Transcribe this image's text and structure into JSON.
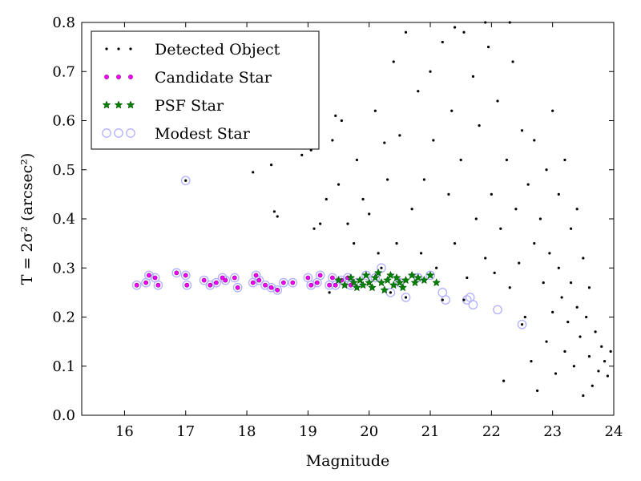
{
  "chart_data": {
    "type": "scatter",
    "xlabel": "Magnitude",
    "ylabel": "T = 2σ² (arcsec²)",
    "xlim": [
      15.3,
      24.0
    ],
    "ylim": [
      0.0,
      0.8
    ],
    "xticks": [
      16,
      17,
      18,
      19,
      20,
      21,
      22,
      23,
      24
    ],
    "yticks": [
      0.0,
      0.1,
      0.2,
      0.3,
      0.4,
      0.5,
      0.6,
      0.7,
      0.8
    ],
    "grid": false,
    "legend_position": "upper-left",
    "series": [
      {
        "name": "Detected Object",
        "marker": "dot",
        "color": "#000000",
        "points": [
          [
            19.35,
            0.25
          ],
          [
            20.2,
            0.3
          ],
          [
            20.35,
            0.25
          ],
          [
            20.6,
            0.24
          ],
          [
            22.5,
            0.185
          ],
          [
            21.55,
            0.235
          ],
          [
            21.2,
            0.235
          ],
          [
            17.0,
            0.478
          ],
          [
            18.1,
            0.495
          ],
          [
            18.4,
            0.51
          ],
          [
            18.45,
            0.415
          ],
          [
            18.5,
            0.405
          ],
          [
            18.9,
            0.53
          ],
          [
            19.05,
            0.54
          ],
          [
            19.1,
            0.38
          ],
          [
            19.2,
            0.39
          ],
          [
            19.3,
            0.44
          ],
          [
            19.4,
            0.56
          ],
          [
            19.45,
            0.61
          ],
          [
            19.5,
            0.47
          ],
          [
            19.55,
            0.6
          ],
          [
            19.65,
            0.39
          ],
          [
            19.75,
            0.35
          ],
          [
            19.8,
            0.52
          ],
          [
            19.9,
            0.44
          ],
          [
            20.0,
            0.41
          ],
          [
            20.1,
            0.62
          ],
          [
            20.15,
            0.33
          ],
          [
            20.25,
            0.555
          ],
          [
            20.3,
            0.48
          ],
          [
            20.4,
            0.72
          ],
          [
            20.45,
            0.35
          ],
          [
            20.5,
            0.57
          ],
          [
            20.6,
            0.78
          ],
          [
            20.7,
            0.42
          ],
          [
            20.8,
            0.66
          ],
          [
            20.85,
            0.33
          ],
          [
            20.9,
            0.48
          ],
          [
            21.0,
            0.7
          ],
          [
            21.05,
            0.56
          ],
          [
            21.1,
            0.3
          ],
          [
            21.2,
            0.76
          ],
          [
            21.3,
            0.45
          ],
          [
            21.35,
            0.62
          ],
          [
            21.4,
            0.35
          ],
          [
            21.5,
            0.52
          ],
          [
            21.55,
            0.78
          ],
          [
            21.6,
            0.28
          ],
          [
            21.7,
            0.69
          ],
          [
            21.75,
            0.4
          ],
          [
            21.8,
            0.59
          ],
          [
            21.9,
            0.32
          ],
          [
            21.95,
            0.75
          ],
          [
            22.0,
            0.45
          ],
          [
            22.05,
            0.29
          ],
          [
            22.1,
            0.64
          ],
          [
            22.15,
            0.38
          ],
          [
            22.2,
            0.07
          ],
          [
            22.25,
            0.52
          ],
          [
            22.3,
            0.26
          ],
          [
            22.35,
            0.72
          ],
          [
            22.4,
            0.42
          ],
          [
            22.45,
            0.31
          ],
          [
            22.5,
            0.58
          ],
          [
            22.55,
            0.2
          ],
          [
            22.6,
            0.47
          ],
          [
            22.65,
            0.11
          ],
          [
            22.7,
            0.35
          ],
          [
            22.75,
            0.05
          ],
          [
            22.8,
            0.4
          ],
          [
            22.85,
            0.27
          ],
          [
            22.9,
            0.15
          ],
          [
            22.95,
            0.33
          ],
          [
            23.0,
            0.21
          ],
          [
            23.05,
            0.085
          ],
          [
            23.1,
            0.3
          ],
          [
            23.15,
            0.24
          ],
          [
            23.2,
            0.13
          ],
          [
            23.25,
            0.19
          ],
          [
            23.3,
            0.27
          ],
          [
            23.35,
            0.1
          ],
          [
            23.4,
            0.22
          ],
          [
            23.45,
            0.16
          ],
          [
            23.5,
            0.04
          ],
          [
            23.55,
            0.2
          ],
          [
            23.6,
            0.12
          ],
          [
            23.65,
            0.06
          ],
          [
            23.7,
            0.17
          ],
          [
            23.75,
            0.09
          ],
          [
            23.8,
            0.14
          ],
          [
            23.85,
            0.11
          ],
          [
            23.9,
            0.08
          ],
          [
            23.95,
            0.13
          ],
          [
            23.5,
            0.32
          ],
          [
            23.3,
            0.38
          ],
          [
            23.1,
            0.45
          ],
          [
            22.9,
            0.5
          ],
          [
            22.7,
            0.56
          ],
          [
            23.0,
            0.62
          ],
          [
            23.2,
            0.52
          ],
          [
            23.6,
            0.26
          ],
          [
            23.4,
            0.42
          ],
          [
            22.3,
            0.8
          ],
          [
            21.9,
            0.8
          ],
          [
            21.4,
            0.79
          ]
        ]
      },
      {
        "name": "Candidate Star",
        "marker": "circle",
        "color": "#ff00ff",
        "points": [
          [
            16.2,
            0.265
          ],
          [
            16.35,
            0.27
          ],
          [
            16.4,
            0.285
          ],
          [
            16.5,
            0.28
          ],
          [
            16.55,
            0.265
          ],
          [
            16.85,
            0.29
          ],
          [
            17.0,
            0.285
          ],
          [
            17.02,
            0.265
          ],
          [
            17.3,
            0.275
          ],
          [
            17.4,
            0.265
          ],
          [
            17.5,
            0.27
          ],
          [
            17.6,
            0.28
          ],
          [
            17.65,
            0.275
          ],
          [
            17.8,
            0.28
          ],
          [
            17.85,
            0.26
          ],
          [
            18.1,
            0.27
          ],
          [
            18.15,
            0.285
          ],
          [
            18.2,
            0.275
          ],
          [
            18.3,
            0.265
          ],
          [
            18.4,
            0.26
          ],
          [
            18.5,
            0.255
          ],
          [
            18.6,
            0.27
          ],
          [
            18.75,
            0.27
          ],
          [
            19.0,
            0.28
          ],
          [
            19.05,
            0.265
          ],
          [
            19.15,
            0.27
          ],
          [
            19.2,
            0.285
          ],
          [
            19.35,
            0.265
          ],
          [
            19.4,
            0.28
          ],
          [
            19.45,
            0.265
          ],
          [
            19.55,
            0.275
          ],
          [
            19.65,
            0.28
          ],
          [
            19.7,
            0.265
          ]
        ]
      },
      {
        "name": "PSF Star",
        "marker": "star",
        "color": "#008000",
        "points": [
          [
            19.5,
            0.275
          ],
          [
            19.6,
            0.265
          ],
          [
            19.7,
            0.28
          ],
          [
            19.75,
            0.27
          ],
          [
            19.8,
            0.26
          ],
          [
            19.85,
            0.275
          ],
          [
            19.9,
            0.265
          ],
          [
            19.95,
            0.285
          ],
          [
            20.0,
            0.27
          ],
          [
            20.05,
            0.26
          ],
          [
            20.1,
            0.28
          ],
          [
            20.15,
            0.29
          ],
          [
            20.2,
            0.27
          ],
          [
            20.25,
            0.255
          ],
          [
            20.3,
            0.275
          ],
          [
            20.35,
            0.285
          ],
          [
            20.4,
            0.265
          ],
          [
            20.45,
            0.28
          ],
          [
            20.5,
            0.27
          ],
          [
            20.55,
            0.26
          ],
          [
            20.6,
            0.275
          ],
          [
            20.7,
            0.285
          ],
          [
            20.75,
            0.27
          ],
          [
            20.8,
            0.28
          ],
          [
            20.9,
            0.275
          ],
          [
            21.0,
            0.285
          ],
          [
            21.1,
            0.27
          ]
        ]
      },
      {
        "name": "Modest Star",
        "marker": "open-circle",
        "color": "#b0b0ff",
        "points": [
          [
            16.2,
            0.265
          ],
          [
            16.35,
            0.27
          ],
          [
            16.4,
            0.285
          ],
          [
            16.5,
            0.28
          ],
          [
            16.55,
            0.265
          ],
          [
            16.85,
            0.29
          ],
          [
            17.0,
            0.285
          ],
          [
            17.02,
            0.265
          ],
          [
            17.3,
            0.275
          ],
          [
            17.4,
            0.265
          ],
          [
            17.5,
            0.27
          ],
          [
            17.6,
            0.28
          ],
          [
            17.65,
            0.275
          ],
          [
            17.8,
            0.28
          ],
          [
            17.85,
            0.26
          ],
          [
            18.1,
            0.27
          ],
          [
            18.15,
            0.285
          ],
          [
            18.2,
            0.275
          ],
          [
            18.3,
            0.265
          ],
          [
            18.4,
            0.26
          ],
          [
            18.5,
            0.255
          ],
          [
            18.6,
            0.27
          ],
          [
            18.75,
            0.27
          ],
          [
            19.0,
            0.28
          ],
          [
            19.05,
            0.265
          ],
          [
            19.15,
            0.27
          ],
          [
            19.2,
            0.285
          ],
          [
            19.35,
            0.265
          ],
          [
            19.4,
            0.28
          ],
          [
            19.45,
            0.265
          ],
          [
            19.55,
            0.275
          ],
          [
            19.65,
            0.28
          ],
          [
            19.7,
            0.265
          ],
          [
            19.8,
            0.27
          ],
          [
            19.95,
            0.285
          ],
          [
            20.1,
            0.28
          ],
          [
            20.2,
            0.3
          ],
          [
            20.35,
            0.25
          ],
          [
            20.5,
            0.27
          ],
          [
            20.6,
            0.24
          ],
          [
            20.8,
            0.28
          ],
          [
            21.0,
            0.285
          ],
          [
            21.2,
            0.25
          ],
          [
            21.25,
            0.235
          ],
          [
            21.6,
            0.235
          ],
          [
            21.65,
            0.24
          ],
          [
            21.7,
            0.225
          ],
          [
            22.1,
            0.215
          ],
          [
            22.5,
            0.185
          ],
          [
            17.0,
            0.478
          ]
        ]
      }
    ]
  }
}
